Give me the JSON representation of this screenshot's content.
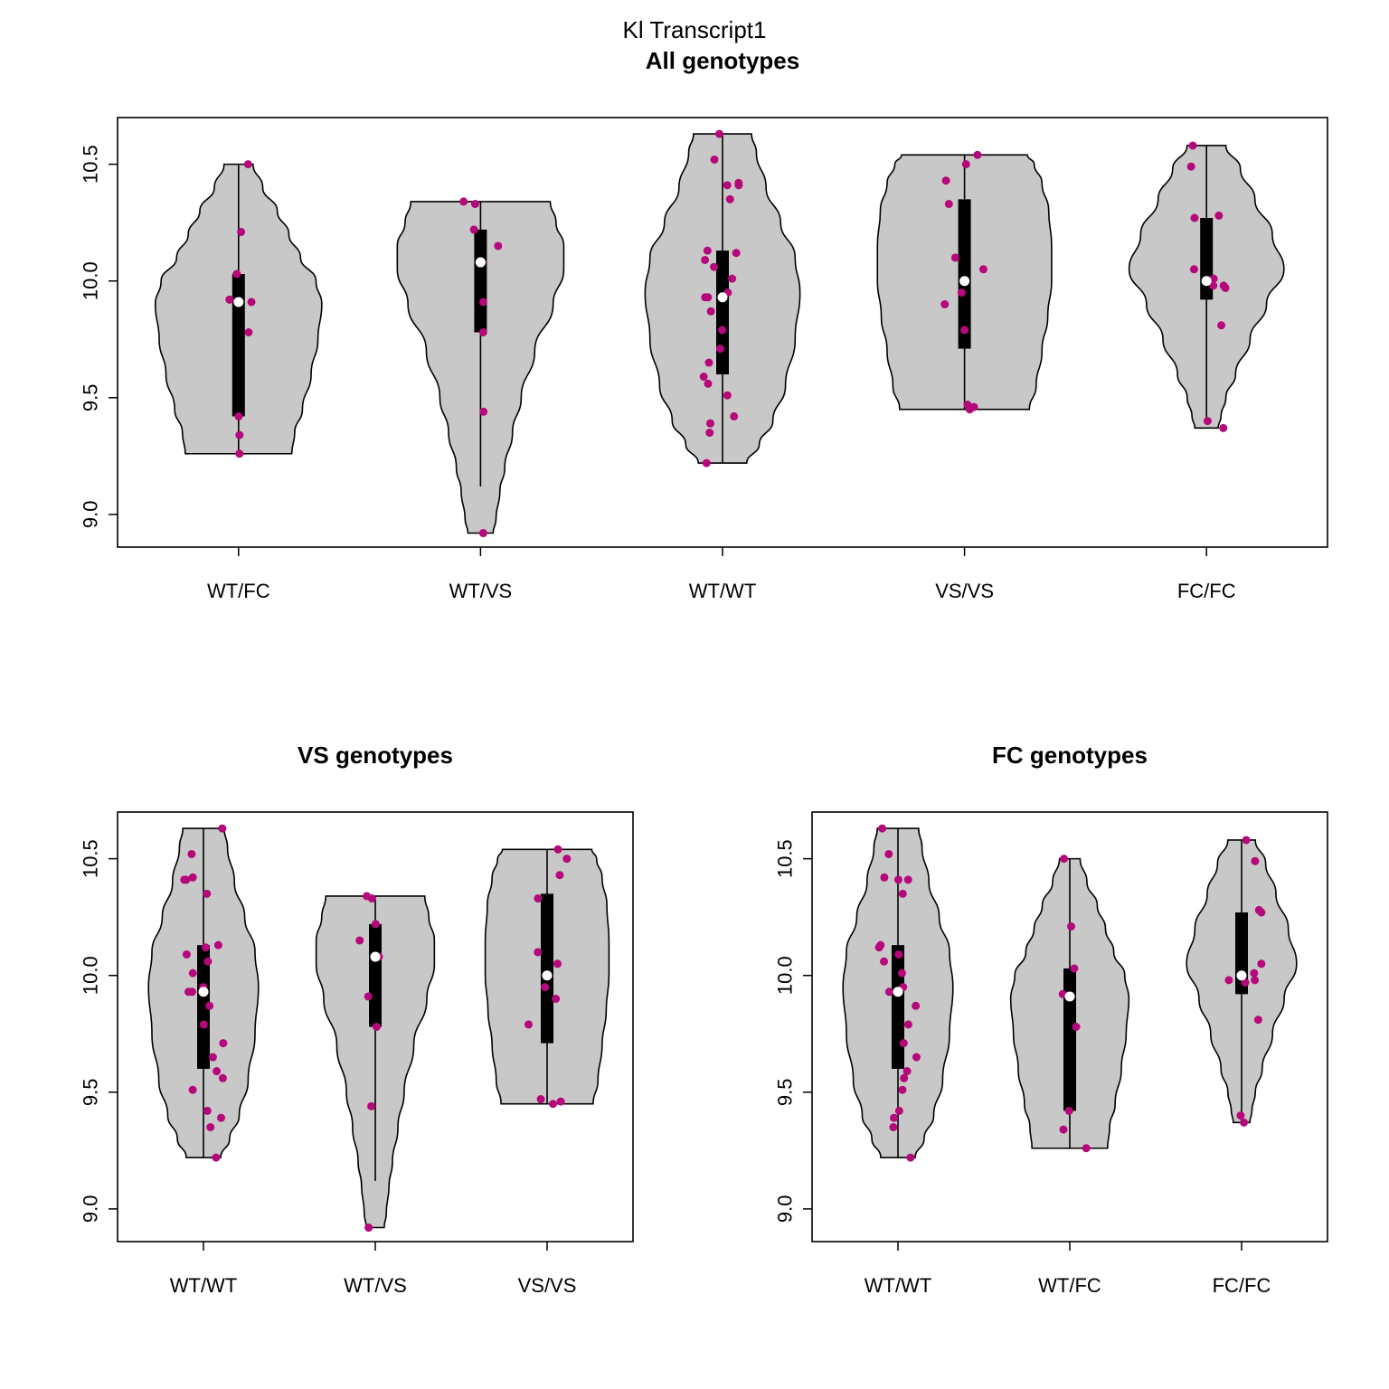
{
  "figure_title": "Kl Transcript1",
  "colors": {
    "violin_fill": "#c8c8c8",
    "point": "#b5087a",
    "box": "#000000",
    "median": "#ffffff"
  },
  "chart_data": [
    {
      "type": "violin",
      "title": "All genotypes",
      "xlabel": "",
      "ylabel": "",
      "ylim": [
        8.86,
        10.7
      ],
      "yticks": [
        "9.0",
        "9.5",
        "10.0",
        "10.5"
      ],
      "groups": [
        {
          "label": "WT/FC",
          "min": 9.26,
          "max": 10.5,
          "q1": 9.42,
          "median": 9.91,
          "q3": 10.03,
          "whisker_low": 9.26,
          "whisker_high": 10.5,
          "width": [
            [
              9.26,
              0.55
            ],
            [
              9.35,
              0.58
            ],
            [
              9.45,
              0.66
            ],
            [
              9.6,
              0.75
            ],
            [
              9.75,
              0.82
            ],
            [
              9.9,
              0.86
            ],
            [
              10.0,
              0.8
            ],
            [
              10.1,
              0.64
            ],
            [
              10.2,
              0.52
            ],
            [
              10.3,
              0.4
            ],
            [
              10.4,
              0.25
            ],
            [
              10.5,
              0.15
            ]
          ],
          "points": [
            10.5,
            10.21,
            10.03,
            9.92,
            9.91,
            9.78,
            9.42,
            9.34,
            9.26
          ]
        },
        {
          "label": "WT/VS",
          "min": 8.92,
          "max": 10.34,
          "q1": 9.78,
          "median": 10.08,
          "q3": 10.22,
          "whisker_low": 9.12,
          "whisker_high": 10.34,
          "width": [
            [
              8.92,
              0.13
            ],
            [
              8.98,
              0.16
            ],
            [
              9.1,
              0.2
            ],
            [
              9.2,
              0.25
            ],
            [
              9.35,
              0.33
            ],
            [
              9.5,
              0.42
            ],
            [
              9.7,
              0.56
            ],
            [
              9.9,
              0.75
            ],
            [
              10.05,
              0.86
            ],
            [
              10.15,
              0.86
            ],
            [
              10.25,
              0.78
            ],
            [
              10.34,
              0.72
            ]
          ],
          "points": [
            10.34,
            10.33,
            10.22,
            10.15,
            10.08,
            9.91,
            9.78,
            9.44,
            8.92
          ]
        },
        {
          "label": "WT/WT",
          "min": 9.22,
          "max": 10.63,
          "q1": 9.6,
          "median": 9.93,
          "q3": 10.13,
          "whisker_low": 9.22,
          "whisker_high": 10.63,
          "width": [
            [
              9.22,
              0.25
            ],
            [
              9.3,
              0.38
            ],
            [
              9.4,
              0.52
            ],
            [
              9.55,
              0.65
            ],
            [
              9.75,
              0.75
            ],
            [
              9.95,
              0.8
            ],
            [
              10.1,
              0.75
            ],
            [
              10.25,
              0.6
            ],
            [
              10.4,
              0.45
            ],
            [
              10.55,
              0.35
            ],
            [
              10.63,
              0.3
            ]
          ],
          "points": [
            10.63,
            10.52,
            10.42,
            10.41,
            10.41,
            10.35,
            10.13,
            10.12,
            10.09,
            10.06,
            10.01,
            9.95,
            9.93,
            9.93,
            9.87,
            9.79,
            9.71,
            9.65,
            9.59,
            9.56,
            9.51,
            9.42,
            9.39,
            9.35,
            9.22
          ]
        },
        {
          "label": "VS/VS",
          "min": 9.45,
          "max": 10.54,
          "q1": 9.71,
          "median": 10.0,
          "q3": 10.35,
          "whisker_low": 9.45,
          "whisker_high": 10.54,
          "width": [
            [
              9.45,
              0.67
            ],
            [
              9.55,
              0.74
            ],
            [
              9.7,
              0.8
            ],
            [
              9.85,
              0.86
            ],
            [
              10.0,
              0.9
            ],
            [
              10.15,
              0.9
            ],
            [
              10.3,
              0.87
            ],
            [
              10.42,
              0.8
            ],
            [
              10.5,
              0.72
            ],
            [
              10.54,
              0.65
            ]
          ],
          "points": [
            10.54,
            10.5,
            10.43,
            10.33,
            10.1,
            10.05,
            9.95,
            9.9,
            9.79,
            9.47,
            9.46,
            9.45
          ]
        },
        {
          "label": "FC/FC",
          "min": 9.37,
          "max": 10.58,
          "q1": 9.92,
          "median": 10.0,
          "q3": 10.27,
          "whisker_low": 9.4,
          "whisker_high": 10.58,
          "width": [
            [
              9.37,
              0.12
            ],
            [
              9.42,
              0.15
            ],
            [
              9.5,
              0.2
            ],
            [
              9.6,
              0.3
            ],
            [
              9.75,
              0.45
            ],
            [
              9.9,
              0.62
            ],
            [
              10.05,
              0.8
            ],
            [
              10.2,
              0.68
            ],
            [
              10.35,
              0.5
            ],
            [
              10.48,
              0.35
            ],
            [
              10.58,
              0.2
            ]
          ],
          "points": [
            10.58,
            10.49,
            10.28,
            10.27,
            10.05,
            10.01,
            9.98,
            9.98,
            9.97,
            9.81,
            9.4,
            9.37
          ]
        }
      ]
    },
    {
      "type": "violin",
      "title": "VS genotypes",
      "xlabel": "",
      "ylabel": "",
      "ylim": [
        8.86,
        10.7
      ],
      "yticks": [
        "9.0",
        "9.5",
        "10.0",
        "10.5"
      ],
      "groups": [
        {
          "label": "WT/WT",
          "min": 9.22,
          "max": 10.63,
          "q1": 9.6,
          "median": 9.93,
          "q3": 10.13,
          "whisker_low": 9.22,
          "whisker_high": 10.63,
          "width": [
            [
              9.22,
              0.25
            ],
            [
              9.3,
              0.38
            ],
            [
              9.4,
              0.52
            ],
            [
              9.55,
              0.65
            ],
            [
              9.75,
              0.75
            ],
            [
              9.95,
              0.8
            ],
            [
              10.1,
              0.75
            ],
            [
              10.25,
              0.6
            ],
            [
              10.4,
              0.45
            ],
            [
              10.55,
              0.35
            ],
            [
              10.63,
              0.3
            ]
          ],
          "points": [
            10.63,
            10.52,
            10.42,
            10.41,
            10.41,
            10.35,
            10.13,
            10.12,
            10.09,
            10.06,
            10.01,
            9.95,
            9.93,
            9.93,
            9.87,
            9.79,
            9.71,
            9.65,
            9.59,
            9.56,
            9.51,
            9.42,
            9.39,
            9.35,
            9.22
          ]
        },
        {
          "label": "WT/VS",
          "min": 8.92,
          "max": 10.34,
          "q1": 9.78,
          "median": 10.08,
          "q3": 10.22,
          "whisker_low": 9.12,
          "whisker_high": 10.34,
          "width": [
            [
              8.92,
              0.13
            ],
            [
              8.98,
              0.16
            ],
            [
              9.1,
              0.2
            ],
            [
              9.2,
              0.25
            ],
            [
              9.35,
              0.33
            ],
            [
              9.5,
              0.42
            ],
            [
              9.7,
              0.56
            ],
            [
              9.9,
              0.75
            ],
            [
              10.05,
              0.86
            ],
            [
              10.15,
              0.86
            ],
            [
              10.25,
              0.78
            ],
            [
              10.34,
              0.72
            ]
          ],
          "points": [
            10.34,
            10.33,
            10.22,
            10.15,
            10.08,
            9.91,
            9.78,
            9.44,
            8.92
          ]
        },
        {
          "label": "VS/VS",
          "min": 9.45,
          "max": 10.54,
          "q1": 9.71,
          "median": 10.0,
          "q3": 10.35,
          "whisker_low": 9.45,
          "whisker_high": 10.54,
          "width": [
            [
              9.45,
              0.67
            ],
            [
              9.55,
              0.74
            ],
            [
              9.7,
              0.8
            ],
            [
              9.85,
              0.86
            ],
            [
              10.0,
              0.9
            ],
            [
              10.15,
              0.9
            ],
            [
              10.3,
              0.87
            ],
            [
              10.42,
              0.8
            ],
            [
              10.5,
              0.72
            ],
            [
              10.54,
              0.65
            ]
          ],
          "points": [
            10.54,
            10.5,
            10.43,
            10.33,
            10.1,
            10.05,
            9.95,
            9.9,
            9.79,
            9.47,
            9.46,
            9.45
          ]
        }
      ]
    },
    {
      "type": "violin",
      "title": "FC genotypes",
      "xlabel": "",
      "ylabel": "",
      "ylim": [
        8.86,
        10.7
      ],
      "yticks": [
        "9.0",
        "9.5",
        "10.0",
        "10.5"
      ],
      "groups": [
        {
          "label": "WT/WT",
          "min": 9.22,
          "max": 10.63,
          "q1": 9.6,
          "median": 9.93,
          "q3": 10.13,
          "whisker_low": 9.22,
          "whisker_high": 10.63,
          "width": [
            [
              9.22,
              0.25
            ],
            [
              9.3,
              0.38
            ],
            [
              9.4,
              0.52
            ],
            [
              9.55,
              0.65
            ],
            [
              9.75,
              0.75
            ],
            [
              9.95,
              0.8
            ],
            [
              10.1,
              0.75
            ],
            [
              10.25,
              0.6
            ],
            [
              10.4,
              0.45
            ],
            [
              10.55,
              0.35
            ],
            [
              10.63,
              0.3
            ]
          ],
          "points": [
            10.63,
            10.52,
            10.42,
            10.41,
            10.41,
            10.35,
            10.13,
            10.12,
            10.09,
            10.06,
            10.01,
            9.95,
            9.93,
            9.93,
            9.87,
            9.79,
            9.71,
            9.65,
            9.59,
            9.56,
            9.51,
            9.42,
            9.39,
            9.35,
            9.22
          ]
        },
        {
          "label": "WT/FC",
          "min": 9.26,
          "max": 10.5,
          "q1": 9.42,
          "median": 9.91,
          "q3": 10.03,
          "whisker_low": 9.26,
          "whisker_high": 10.5,
          "width": [
            [
              9.26,
              0.55
            ],
            [
              9.35,
              0.58
            ],
            [
              9.45,
              0.66
            ],
            [
              9.6,
              0.75
            ],
            [
              9.75,
              0.82
            ],
            [
              9.9,
              0.86
            ],
            [
              10.0,
              0.8
            ],
            [
              10.1,
              0.64
            ],
            [
              10.2,
              0.52
            ],
            [
              10.3,
              0.4
            ],
            [
              10.4,
              0.25
            ],
            [
              10.5,
              0.15
            ]
          ],
          "points": [
            10.5,
            10.21,
            10.03,
            9.92,
            9.91,
            9.78,
            9.42,
            9.34,
            9.26
          ]
        },
        {
          "label": "FC/FC",
          "min": 9.37,
          "max": 10.58,
          "q1": 9.92,
          "median": 10.0,
          "q3": 10.27,
          "whisker_low": 9.4,
          "whisker_high": 10.58,
          "width": [
            [
              9.37,
              0.12
            ],
            [
              9.42,
              0.15
            ],
            [
              9.5,
              0.2
            ],
            [
              9.6,
              0.3
            ],
            [
              9.75,
              0.45
            ],
            [
              9.9,
              0.62
            ],
            [
              10.05,
              0.8
            ],
            [
              10.2,
              0.68
            ],
            [
              10.35,
              0.5
            ],
            [
              10.48,
              0.35
            ],
            [
              10.58,
              0.2
            ]
          ],
          "points": [
            10.58,
            10.49,
            10.28,
            10.27,
            10.05,
            10.01,
            9.98,
            9.98,
            9.97,
            9.81,
            9.4,
            9.37
          ]
        }
      ]
    }
  ]
}
